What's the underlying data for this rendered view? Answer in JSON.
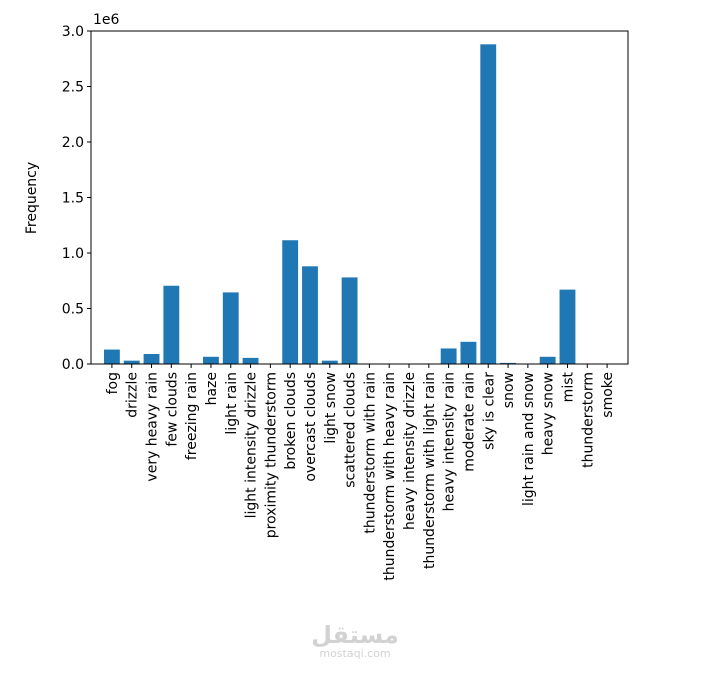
{
  "chart_data": {
    "type": "bar",
    "ylabel": "Frequency",
    "xlabel": "",
    "y_scale_label": "1e6",
    "ylim": [
      0,
      3.0
    ],
    "y_unit_multiplier": 1000000,
    "yticks": [
      "0.0",
      "0.5",
      "1.0",
      "1.5",
      "2.0",
      "2.5",
      "3.0"
    ],
    "bar_color": "#1f77b4",
    "categories": [
      "fog",
      "drizzle",
      "very heavy rain",
      "few clouds",
      "freezing rain",
      "haze",
      "light rain",
      "light intensity drizzle",
      "proximity thunderstorm",
      "broken clouds",
      "overcast clouds",
      "light snow",
      "scattered clouds",
      "thunderstorm with rain",
      "thunderstorm with heavy rain",
      "heavy intensity drizzle",
      "thunderstorm with light rain",
      "heavy intensity rain",
      "moderate rain",
      "sky is clear",
      "snow",
      "light rain and snow",
      "heavy snow",
      "mist",
      "thunderstorm",
      "smoke"
    ],
    "values": [
      130000,
      30000,
      90000,
      705000,
      2000,
      65000,
      645000,
      55000,
      3000,
      1115000,
      880000,
      30000,
      780000,
      2000,
      1000,
      1000,
      2000,
      140000,
      200000,
      2880000,
      10000,
      3000,
      65000,
      670000,
      3000,
      2000
    ]
  },
  "watermark": {
    "logo": "مستقل",
    "text": "mostaqi.com"
  }
}
